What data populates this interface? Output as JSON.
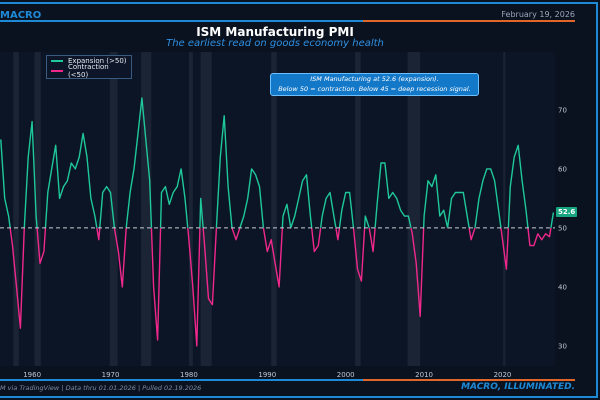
{
  "header": {
    "brand": "MACRO",
    "date": "February 19, 2026"
  },
  "footer": {
    "source": "M via TradingView | Data thru 01.01.2026 | Pulled 02.19.2026",
    "tagline": "MACRO, ILLUMINATED."
  },
  "colors": {
    "background": "#0a1220",
    "plot_bg": "#0c1526",
    "expansion": "#1fc89a",
    "contraction": "#f0288c",
    "accent_blue": "#1e8ad6",
    "accent_orange": "#e0662a",
    "recession_band": "#1b2434"
  },
  "chart_data": {
    "type": "line",
    "title": "ISM Manufacturing PMI",
    "subtitle": "The earliest read on goods economy health",
    "legend": {
      "position": "top-left",
      "entries": [
        "Expansion (>50)",
        "Contraction (<50)"
      ]
    },
    "annotation": {
      "line1": "ISM Manufacturing at 52.6 (expansion).",
      "line2": "Below 50 = contraction. Below 45 = deep recession signal."
    },
    "last_value_label": "52.6",
    "threshold": 50,
    "xlim": [
      1955.9,
      2026.7
    ],
    "ylim": [
      26.6,
      79.8
    ],
    "x_ticks": [
      1960,
      1970,
      1980,
      1990,
      2000,
      2010,
      2020
    ],
    "y_ticks": [
      30,
      40,
      50,
      60,
      70
    ],
    "grid": false,
    "recessions": [
      [
        1957.6,
        1958.3
      ],
      [
        1960.3,
        1961.1
      ],
      [
        1969.9,
        1970.9
      ],
      [
        1973.9,
        1975.2
      ],
      [
        1980.0,
        1980.5
      ],
      [
        1981.5,
        1982.9
      ],
      [
        1990.5,
        1991.2
      ],
      [
        2001.2,
        2001.9
      ],
      [
        2007.9,
        2009.5
      ],
      [
        2020.1,
        2020.3
      ]
    ],
    "x_start": 1956.0,
    "x_step": 0.5,
    "values": [
      65,
      55,
      52,
      47,
      40,
      33,
      50,
      62,
      68,
      52,
      44,
      46,
      56,
      60,
      64,
      55,
      57,
      58,
      61,
      60,
      62,
      66,
      62,
      55,
      52,
      48,
      56,
      57,
      56,
      50,
      46,
      40,
      50,
      56,
      60,
      66,
      72,
      65,
      58,
      40,
      31,
      56,
      57,
      54,
      56,
      57,
      60,
      55,
      48,
      40,
      30,
      55,
      47,
      38,
      37,
      50,
      62,
      69,
      57,
      50,
      48,
      50,
      52,
      55,
      60,
      59,
      57,
      50,
      46,
      48,
      44,
      40,
      52,
      54,
      50,
      52,
      55,
      58,
      59,
      52,
      46,
      47,
      52,
      55,
      56,
      52,
      48,
      53,
      56,
      56,
      50,
      43,
      41,
      52,
      50,
      46,
      54,
      61,
      61,
      55,
      56,
      55,
      53,
      52,
      52,
      49,
      44,
      35,
      52,
      58,
      57,
      59,
      52,
      53,
      50,
      55,
      56,
      56,
      56,
      52,
      48,
      50,
      55,
      58,
      60,
      60,
      58,
      53,
      48,
      43,
      57,
      62,
      64,
      58,
      53,
      47,
      47,
      49,
      48,
      49,
      48.5,
      52.6
    ]
  }
}
